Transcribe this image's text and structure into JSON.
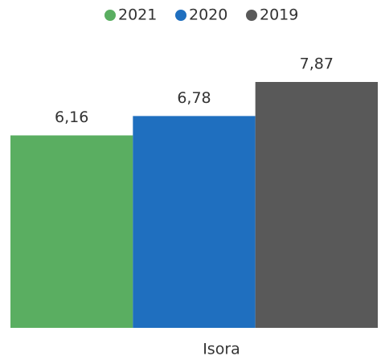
{
  "chart_data": {
    "type": "bar",
    "categories": [
      "Isora"
    ],
    "series": [
      {
        "name": "2021",
        "color": "#5aae61",
        "values": [
          6.16
        ],
        "value_labels": [
          "6,16"
        ]
      },
      {
        "name": "2020",
        "color": "#1f6fbf",
        "values": [
          6.78
        ],
        "value_labels": [
          "6,78"
        ]
      },
      {
        "name": "2019",
        "color": "#595959",
        "values": [
          7.87
        ],
        "value_labels": [
          "7,87"
        ]
      }
    ],
    "legend": "top"
  }
}
